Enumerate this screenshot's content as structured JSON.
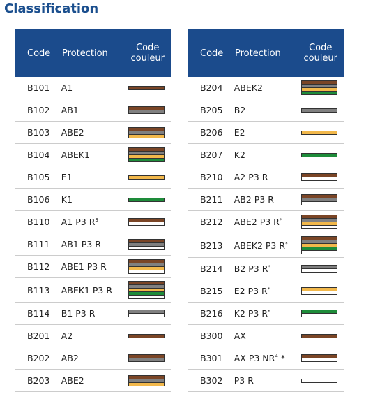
{
  "title": "Classification",
  "columns": [
    "Code",
    "Protection",
    "Code couleur"
  ],
  "tables": [
    {
      "rows": [
        {
          "code": "B101",
          "protection": "A1",
          "stripes": [
            "#7a4526"
          ]
        },
        {
          "code": "B102",
          "protection": "AB1",
          "stripes": [
            "#7a4526",
            "#808080"
          ]
        },
        {
          "code": "B103",
          "protection": "ABE2",
          "stripes": [
            "#7a4526",
            "#808080",
            "#f2b84b"
          ]
        },
        {
          "code": "B104",
          "protection": "ABEK1",
          "stripes": [
            "#7a4526",
            "#808080",
            "#f2b84b",
            "#1e8c3a"
          ]
        },
        {
          "code": "B105",
          "protection": "E1",
          "stripes": [
            "#f2b84b"
          ]
        },
        {
          "code": "B106",
          "protection": "K1",
          "stripes": [
            "#1e8c3a"
          ]
        },
        {
          "code": "B110",
          "protection": "A1 P3 R",
          "note": "3",
          "stripes": [
            "#7a4526",
            "#ffffff"
          ]
        },
        {
          "code": "B111",
          "protection": "AB1 P3 R",
          "stripes": [
            "#7a4526",
            "#808080",
            "#ffffff"
          ]
        },
        {
          "code": "B112",
          "protection": "ABE1 P3 R",
          "stripes": [
            "#7a4526",
            "#808080",
            "#f2b84b",
            "#ffffff"
          ]
        },
        {
          "code": "B113",
          "protection": "ABEK1 P3 R",
          "stripes": [
            "#7a4526",
            "#808080",
            "#f2b84b",
            "#1e8c3a",
            "#ffffff"
          ]
        },
        {
          "code": "B114",
          "protection": "B1 P3 R",
          "stripes": [
            "#808080",
            "#ffffff"
          ]
        },
        {
          "code": "B201",
          "protection": "A2",
          "stripes": [
            "#7a4526"
          ]
        },
        {
          "code": "B202",
          "protection": "AB2",
          "stripes": [
            "#7a4526",
            "#808080"
          ]
        },
        {
          "code": "B203",
          "protection": "ABE2",
          "stripes": [
            "#7a4526",
            "#808080",
            "#f2b84b"
          ]
        }
      ]
    },
    {
      "rows": [
        {
          "code": "B204",
          "protection": "ABEK2",
          "stripes": [
            "#7a4526",
            "#808080",
            "#f2b84b",
            "#1e8c3a"
          ]
        },
        {
          "code": "B205",
          "protection": "B2",
          "stripes": [
            "#808080"
          ]
        },
        {
          "code": "B206",
          "protection": "E2",
          "stripes": [
            "#f2b84b"
          ]
        },
        {
          "code": "B207",
          "protection": "K2",
          "stripes": [
            "#1e8c3a"
          ]
        },
        {
          "code": "B210",
          "protection": "A2 P3 R",
          "stripes": [
            "#7a4526",
            "#ffffff"
          ]
        },
        {
          "code": "B211",
          "protection": "AB2 P3 R",
          "stripes": [
            "#7a4526",
            "#808080",
            "#ffffff"
          ]
        },
        {
          "code": "B212",
          "protection": "ABE2 P3 R",
          "note": "*",
          "stripes": [
            "#7a4526",
            "#808080",
            "#f2b84b",
            "#ffffff"
          ]
        },
        {
          "code": "B213",
          "protection": "ABEK2 P3 R",
          "note": "*",
          "stripes": [
            "#7a4526",
            "#808080",
            "#f2b84b",
            "#1e8c3a",
            "#ffffff"
          ]
        },
        {
          "code": "B214",
          "protection": "B2 P3 R",
          "note": "*",
          "stripes": [
            "#808080",
            "#ffffff"
          ]
        },
        {
          "code": "B215",
          "protection": "E2 P3 R",
          "note": "*",
          "stripes": [
            "#f2b84b",
            "#ffffff"
          ]
        },
        {
          "code": "B216",
          "protection": "K2 P3 R",
          "note": "*",
          "stripes": [
            "#1e8c3a",
            "#ffffff"
          ]
        },
        {
          "code": "B300",
          "protection": "AX",
          "stripes": [
            "#7a4526"
          ]
        },
        {
          "code": "B301",
          "protection": "AX P3 NR",
          "note": "4",
          "mark": "*",
          "stripes": [
            "#7a4526",
            "#ffffff"
          ]
        },
        {
          "code": "B302",
          "protection": "P3 R",
          "stripes": [
            "#ffffff"
          ]
        }
      ]
    }
  ]
}
